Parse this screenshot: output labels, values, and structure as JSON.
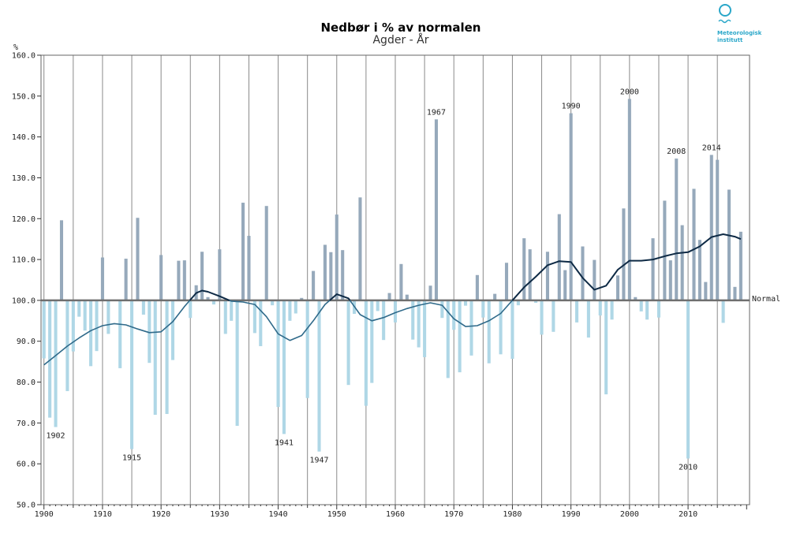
{
  "chart_data": {
    "type": "bar",
    "title": "Nedbør i % av normalen",
    "subtitle": "Agder - År",
    "ylabel": "%",
    "ylim": [
      50,
      160
    ],
    "yticks": [
      50,
      60,
      70,
      80,
      90,
      100,
      110,
      120,
      130,
      140,
      150,
      160
    ],
    "ytick_labels": [
      "50.0",
      "60.0",
      "70.0",
      "80.0",
      "90.0",
      "100.0",
      "110.0",
      "120.0",
      "130.0",
      "140.0",
      "150.0",
      "160.0"
    ],
    "xlim": [
      1899.5,
      2020.5
    ],
    "xticks": [
      1900,
      1910,
      1920,
      1930,
      1940,
      1950,
      1960,
      1970,
      1980,
      1990,
      2000,
      2010
    ],
    "baseline": 100,
    "baseline_label": "Normal",
    "grid_years": [
      1900,
      1905,
      1910,
      1915,
      1920,
      1925,
      1930,
      1935,
      1940,
      1945,
      1950,
      1955,
      1960,
      1965,
      1970,
      1975,
      1980,
      1985,
      1990,
      1995,
      2000,
      2005,
      2010,
      2015
    ],
    "years": [
      1900,
      1901,
      1902,
      1903,
      1904,
      1905,
      1906,
      1907,
      1908,
      1909,
      1910,
      1911,
      1912,
      1913,
      1914,
      1915,
      1916,
      1917,
      1918,
      1919,
      1920,
      1921,
      1922,
      1923,
      1924,
      1925,
      1926,
      1927,
      1928,
      1929,
      1930,
      1931,
      1932,
      1933,
      1934,
      1935,
      1936,
      1937,
      1938,
      1939,
      1940,
      1941,
      1942,
      1943,
      1944,
      1945,
      1946,
      1947,
      1948,
      1949,
      1950,
      1951,
      1952,
      1953,
      1954,
      1955,
      1956,
      1957,
      1958,
      1959,
      1960,
      1961,
      1962,
      1963,
      1964,
      1965,
      1966,
      1967,
      1968,
      1969,
      1970,
      1971,
      1972,
      1973,
      1974,
      1975,
      1976,
      1977,
      1978,
      1979,
      1980,
      1981,
      1982,
      1983,
      1984,
      1985,
      1986,
      1987,
      1988,
      1989,
      1990,
      1991,
      1992,
      1993,
      1994,
      1995,
      1996,
      1997,
      1998,
      1999,
      2000,
      2001,
      2002,
      2003,
      2004,
      2005,
      2006,
      2007,
      2008,
      2009,
      2010,
      2011,
      2012,
      2013,
      2014,
      2015,
      2016,
      2017,
      2018,
      2019
    ],
    "values": [
      85.8,
      71.3,
      69.0,
      119.6,
      77.8,
      87.5,
      96.0,
      92.6,
      83.9,
      87.6,
      110.5,
      91.8,
      99.8,
      83.4,
      110.2,
      63.6,
      120.2,
      96.5,
      84.7,
      72.0,
      111.1,
      72.2,
      85.4,
      109.7,
      109.8,
      95.7,
      103.7,
      111.9,
      100.8,
      99.0,
      112.5,
      91.8,
      95.0,
      69.3,
      123.9,
      115.8,
      92.0,
      88.8,
      123.1,
      98.8,
      73.9,
      67.3,
      95.0,
      96.8,
      100.6,
      76.1,
      107.2,
      63.0,
      113.6,
      111.8,
      121.0,
      112.3,
      79.3,
      96.7,
      125.2,
      74.2,
      79.8,
      97.4,
      90.3,
      101.8,
      94.6,
      108.9,
      101.4,
      90.4,
      88.5,
      86.1,
      103.6,
      144.3,
      95.7,
      81.0,
      92.8,
      82.4,
      98.7,
      86.5,
      106.2,
      95.8,
      84.6,
      101.6,
      86.8,
      109.2,
      85.7,
      98.8,
      115.2,
      112.5,
      99.4,
      91.6,
      111.9,
      92.3,
      121.1,
      107.4,
      145.8,
      94.6,
      113.2,
      90.9,
      109.9,
      96.3,
      77.0,
      95.3,
      106.1,
      122.5,
      149.3,
      100.8,
      97.3,
      95.3,
      115.2,
      95.8,
      124.4,
      109.8,
      134.7,
      118.4,
      61.3,
      127.3,
      114.8,
      104.5,
      135.6,
      134.4,
      94.5,
      127.1,
      103.3,
      116.8
    ],
    "smooth": {
      "years": [
        1900,
        1902,
        1904,
        1906,
        1908,
        1910,
        1912,
        1914,
        1916,
        1918,
        1920,
        1922,
        1924,
        1926,
        1927,
        1928,
        1930,
        1932,
        1934,
        1936,
        1938,
        1940,
        1942,
        1944,
        1946,
        1948,
        1950,
        1952,
        1954,
        1956,
        1958,
        1960,
        1962,
        1964,
        1966,
        1968,
        1970,
        1972,
        1974,
        1976,
        1978,
        1980,
        1982,
        1984,
        1986,
        1988,
        1990,
        1992,
        1994,
        1996,
        1998,
        2000,
        2002,
        2004,
        2006,
        2008,
        2010,
        2012,
        2014,
        2016,
        2018,
        2019
      ],
      "values": [
        84.2,
        86.5,
        88.8,
        90.8,
        92.6,
        93.8,
        94.3,
        94.0,
        93.0,
        92.1,
        92.3,
        94.8,
        98.5,
        101.8,
        102.4,
        102.1,
        101.0,
        99.8,
        99.6,
        99.0,
        96.0,
        91.8,
        90.2,
        91.4,
        95.0,
        99.0,
        101.5,
        100.5,
        96.5,
        95.0,
        95.8,
        97.0,
        98.0,
        98.8,
        99.4,
        98.8,
        95.5,
        93.6,
        93.8,
        95.0,
        96.8,
        100.0,
        103.2,
        105.8,
        108.6,
        109.6,
        109.4,
        105.5,
        102.6,
        103.6,
        107.5,
        109.7,
        109.7,
        110.0,
        110.8,
        111.5,
        111.8,
        113.2,
        115.5,
        116.2,
        115.6,
        115.0
      ]
    },
    "annotations": [
      {
        "year": 1902,
        "label": "1902",
        "value": 69.0
      },
      {
        "year": 1915,
        "label": "1915",
        "value": 63.6
      },
      {
        "year": 1941,
        "label": "1941",
        "value": 67.3
      },
      {
        "year": 1947,
        "label": "1947",
        "value": 63.0
      },
      {
        "year": 1967,
        "label": "1967",
        "value": 144.3
      },
      {
        "year": 1990,
        "label": "1990",
        "value": 145.8
      },
      {
        "year": 2000,
        "label": "2000",
        "value": 149.3
      },
      {
        "year": 2008,
        "label": "2008",
        "value": 134.7
      },
      {
        "year": 2010,
        "label": "2010",
        "value": 61.3
      },
      {
        "year": 2014,
        "label": "2014",
        "value": 135.6
      }
    ],
    "colors": {
      "above": "#96a9bb",
      "below": "#afd7e6",
      "smooth_below": "#2f6a8a",
      "smooth_above": "#0e2a45",
      "baseline": "#6f6f6f",
      "grid": "#8a8a8a",
      "logo": "#2aa7c9"
    }
  },
  "logo": {
    "name": "Meteorologisk institutt",
    "line1": "Meteorologisk",
    "line2": "institutt"
  }
}
